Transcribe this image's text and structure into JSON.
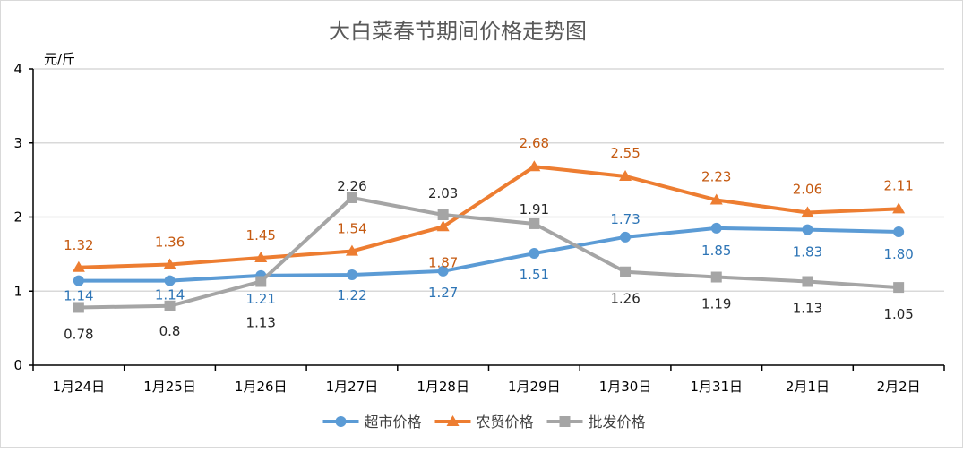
{
  "chart_data": {
    "type": "line",
    "title": "大白菜春节期间价格走势图",
    "ylabel": "元/斤",
    "ylim": [
      0,
      4
    ],
    "yticks": [
      0,
      1,
      2,
      3,
      4
    ],
    "grid": true,
    "legend_position": "bottom",
    "categories": [
      "1月24日",
      "1月25日",
      "1月26日",
      "1月27日",
      "1月28日",
      "1月29日",
      "1月30日",
      "1月31日",
      "2月1日",
      "2月2日"
    ],
    "series": [
      {
        "name": "超市价格",
        "color": "#5b9bd5",
        "marker": "circle",
        "values": [
          1.14,
          1.14,
          1.21,
          1.22,
          1.27,
          1.51,
          1.73,
          1.85,
          1.83,
          1.8
        ],
        "labels": [
          "1.14",
          "1.14",
          "1.21",
          "1.22",
          "1.27",
          "1.51",
          "1.73",
          "1.85",
          "1.83",
          "1.80"
        ]
      },
      {
        "name": "农贸价格",
        "color": "#ed7d31",
        "marker": "triangle",
        "values": [
          1.32,
          1.36,
          1.45,
          1.54,
          1.87,
          2.68,
          2.55,
          2.23,
          2.06,
          2.11
        ],
        "labels": [
          "1.32",
          "1.36",
          "1.45",
          "1.54",
          "1.87",
          "2.68",
          "2.55",
          "2.23",
          "2.06",
          "2.11"
        ]
      },
      {
        "name": "批发价格",
        "color": "#a5a5a5",
        "marker": "square",
        "values": [
          0.78,
          0.8,
          1.13,
          2.26,
          2.03,
          1.91,
          1.26,
          1.19,
          1.13,
          1.05
        ],
        "labels": [
          "0.78",
          "0.8",
          "1.13",
          "2.26",
          "2.03",
          "1.91",
          "1.26",
          "1.19",
          "1.13",
          "1.05"
        ]
      }
    ]
  }
}
